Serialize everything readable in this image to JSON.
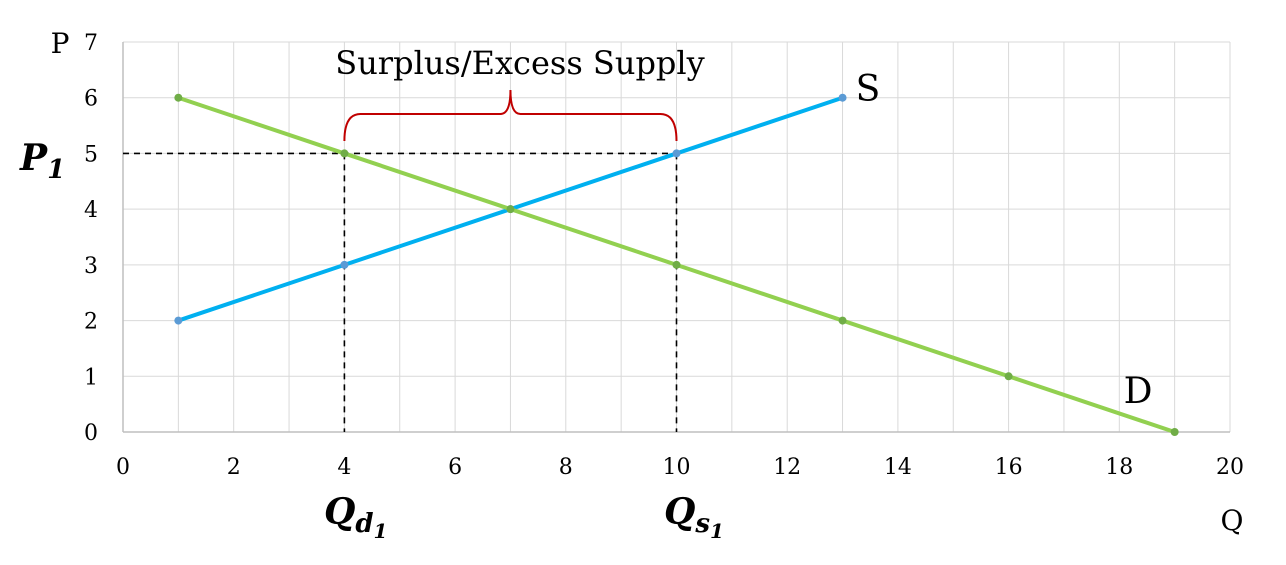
{
  "chart_data": {
    "type": "line",
    "title": "",
    "xlabel": "Q",
    "ylabel": "P",
    "xlim": [
      0,
      20
    ],
    "ylim": [
      0,
      7
    ],
    "xticks": [
      "0",
      "2",
      "4",
      "6",
      "8",
      "10",
      "12",
      "14",
      "16",
      "18",
      "20"
    ],
    "yticks": [
      "0",
      "1",
      "2",
      "3",
      "4",
      "5",
      "6",
      "7"
    ],
    "grid": true,
    "series": [
      {
        "name": "S",
        "color": "#00b0f0",
        "marker_color": "#5b9bd5",
        "points": [
          [
            1,
            2
          ],
          [
            4,
            3
          ],
          [
            7,
            4
          ],
          [
            10,
            5
          ],
          [
            13,
            6
          ]
        ]
      },
      {
        "name": "D",
        "color": "#92d050",
        "marker_color": "#70ad47",
        "points": [
          [
            1,
            6
          ],
          [
            4,
            5
          ],
          [
            7,
            4
          ],
          [
            10,
            3
          ],
          [
            13,
            2
          ],
          [
            16,
            1
          ],
          [
            19,
            0
          ]
        ]
      }
    ],
    "price_line": {
      "label": "P",
      "subscript": "1",
      "value": 5
    },
    "quantity_lines": [
      {
        "label": "Q",
        "subscript": "d",
        "subsubscript": "1",
        "value": 4
      },
      {
        "label": "Q",
        "subscript": "s",
        "subsubscript": "1",
        "value": 10
      }
    ],
    "annotation": {
      "text": "Surplus/Excess Supply",
      "from": 4,
      "to": 10,
      "brace_color": "#c00000"
    }
  }
}
